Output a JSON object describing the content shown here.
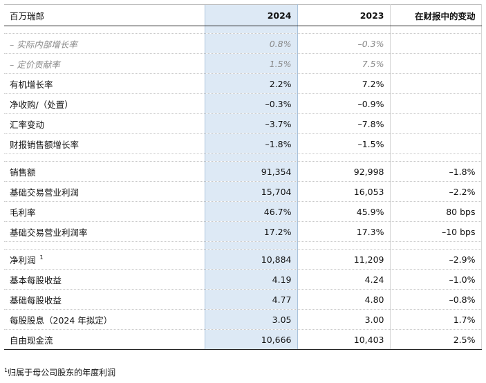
{
  "header": {
    "label": "百万瑞郎",
    "col_2024": "2024",
    "col_2023": "2023",
    "col_change": "在财报中的变动"
  },
  "rows": [
    {
      "label": "– 实际内部增长率",
      "v2024": "0.8%",
      "v2023": "–0.3%",
      "change": ""
    },
    {
      "label": "– 定价贡献率",
      "v2024": "1.5%",
      "v2023": "7.5%",
      "change": ""
    },
    {
      "label": "有机增长率",
      "v2024": "2.2%",
      "v2023": "7.2%",
      "change": ""
    },
    {
      "label": "净收购/（处置）",
      "v2024": "–0.3%",
      "v2023": "–0.9%",
      "change": ""
    },
    {
      "label": "汇率变动",
      "v2024": "–3.7%",
      "v2023": "–7.8%",
      "change": ""
    },
    {
      "label": "财报销售额增长率",
      "v2024": "–1.8%",
      "v2023": "–1.5%",
      "change": ""
    },
    {
      "label": "销售额",
      "v2024": "91,354",
      "v2023": "92,998",
      "change": "–1.8%"
    },
    {
      "label": "基础交易营业利润",
      "v2024": "15,704",
      "v2023": "16,053",
      "change": "–2.2%"
    },
    {
      "label": "毛利率",
      "v2024": "46.7%",
      "v2023": "45.9%",
      "change": "80 bps"
    },
    {
      "label": "基础交易营业利润率",
      "v2024": "17.2%",
      "v2023": "17.3%",
      "change": "–10 bps"
    },
    {
      "label": "净利润",
      "v2024": "10,884",
      "v2023": "11,209",
      "change": "–2.9%",
      "footnote_mark": "1"
    },
    {
      "label": "基本每股收益",
      "v2024": "4.19",
      "v2023": "4.24",
      "change": "–1.0%"
    },
    {
      "label": "基础每股收益",
      "v2024": "4.77",
      "v2023": "4.80",
      "change": "–0.8%"
    },
    {
      "label": "每股股息（2024 年拟定）",
      "v2024": "3.05",
      "v2023": "3.00",
      "change": "1.7%"
    },
    {
      "label": "自由现金流",
      "v2024": "10,666",
      "v2023": "10,403",
      "change": "2.5%"
    }
  ],
  "footnote": {
    "mark": "1",
    "text": "归属于母公司股东的年度利润"
  }
}
